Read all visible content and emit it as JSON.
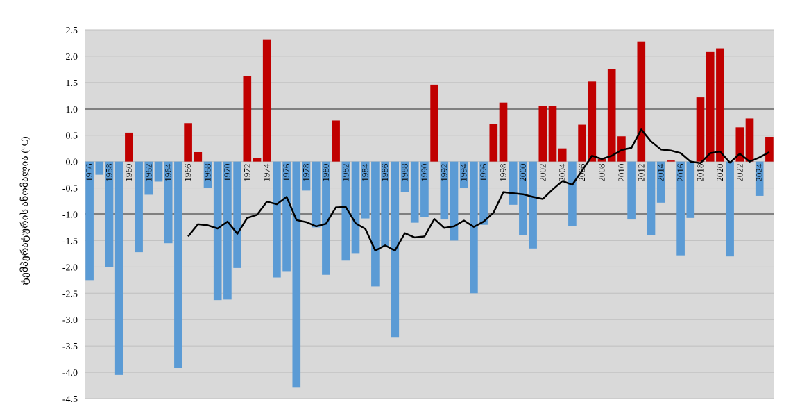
{
  "chart_data": {
    "type": "bar",
    "ylabel": "ტემპერატურის ანომალია (°C)",
    "ylim": [
      -4.5,
      2.5
    ],
    "yticks": [
      "2.5",
      "2.0",
      "1.5",
      "1.0",
      "0.5",
      "0.0",
      "-0.5",
      "-1.0",
      "-1.5",
      "-2.0",
      "-2.5",
      "-3.0",
      "-3.5",
      "-4.0",
      "-4.5"
    ],
    "x_tick_labels": [
      "1956",
      "1958",
      "1960",
      "1962",
      "1964",
      "1966",
      "1968",
      "1970",
      "1972",
      "1974",
      "1976",
      "1978",
      "1980",
      "1982",
      "1984",
      "1986",
      "1988",
      "1990",
      "1992",
      "1994",
      "1996",
      "1998",
      "2000",
      "2002",
      "2004",
      "2006",
      "2008",
      "2010",
      "2012",
      "2014",
      "2016",
      "2018",
      "2020",
      "2022",
      "2024"
    ],
    "grid": "horizontal",
    "reference_lines": [
      1.0,
      -1.0
    ],
    "colors": {
      "positive": "#c00000",
      "negative": "#5b9bd5",
      "line": "#000000",
      "reference": "#808080",
      "plot_bg": "#d9d9d9"
    },
    "years": [
      1956,
      1957,
      1958,
      1959,
      1960,
      1961,
      1962,
      1963,
      1964,
      1965,
      1966,
      1967,
      1968,
      1969,
      1970,
      1971,
      1972,
      1973,
      1974,
      1975,
      1976,
      1977,
      1978,
      1979,
      1980,
      1981,
      1982,
      1983,
      1984,
      1985,
      1986,
      1987,
      1988,
      1989,
      1990,
      1991,
      1992,
      1993,
      1994,
      1995,
      1996,
      1997,
      1998,
      1999,
      2000,
      2001,
      2002,
      2003,
      2004,
      2005,
      2006,
      2007,
      2008,
      2009,
      2010,
      2011,
      2012,
      2013,
      2014,
      2015,
      2016,
      2017,
      2018,
      2019,
      2020,
      2021,
      2022,
      2023,
      2024,
      2025
    ],
    "anomalies": [
      -2.25,
      -0.25,
      -2.0,
      -4.05,
      0.55,
      -1.72,
      -0.63,
      -0.38,
      -1.55,
      -3.92,
      0.73,
      0.18,
      -0.5,
      -2.63,
      -2.62,
      -2.02,
      1.62,
      0.07,
      2.32,
      -2.2,
      -2.08,
      -4.28,
      -0.55,
      -1.25,
      -2.15,
      0.78,
      -1.88,
      -1.75,
      -1.08,
      -2.37,
      -1.62,
      -3.33,
      -0.58,
      -1.16,
      -1.05,
      1.46,
      -1.1,
      -1.5,
      -0.5,
      -2.5,
      -1.2,
      0.72,
      1.12,
      -0.82,
      -1.4,
      -1.65,
      1.06,
      1.05,
      0.25,
      -1.22,
      0.7,
      1.52,
      0.05,
      1.75,
      0.48,
      -1.1,
      2.28,
      -1.4,
      -0.78,
      0.02,
      -1.78,
      -1.07,
      1.22,
      2.08,
      2.15,
      -1.8,
      0.65,
      0.82,
      -0.65,
      0.47
    ],
    "moving_average": [
      null,
      null,
      null,
      null,
      null,
      null,
      null,
      null,
      null,
      null,
      -1.42,
      -1.19,
      -1.21,
      -1.27,
      -1.14,
      -1.37,
      -1.07,
      -1.01,
      -0.76,
      -0.81,
      -0.67,
      -1.11,
      -1.15,
      -1.23,
      -1.18,
      -0.87,
      -0.86,
      -1.17,
      -1.28,
      -1.69,
      -1.59,
      -1.69,
      -1.36,
      -1.44,
      -1.42,
      -1.09,
      -1.26,
      -1.23,
      -1.12,
      -1.24,
      -1.14,
      -0.97,
      -0.58,
      -0.6,
      -0.62,
      -0.67,
      -0.71,
      -0.53,
      -0.37,
      -0.44,
      -0.17,
      0.11,
      0.05,
      0.11,
      0.22,
      0.26,
      0.61,
      0.38,
      0.23,
      0.21,
      0.16,
      0.0,
      -0.03,
      0.16,
      0.19,
      -0.02,
      0.15,
      0.0,
      0.08,
      0.18
    ]
  }
}
